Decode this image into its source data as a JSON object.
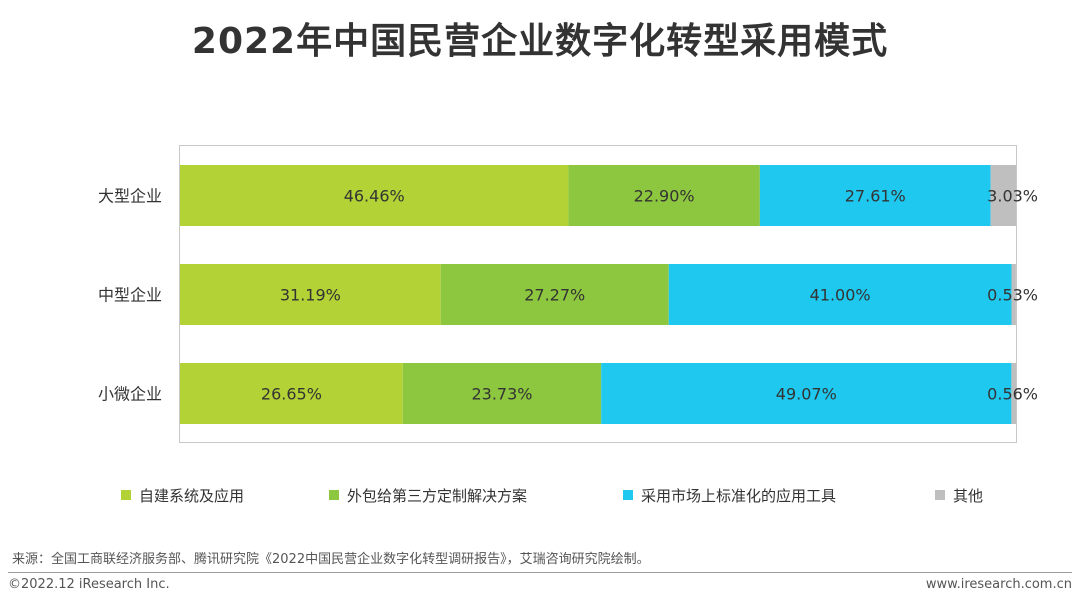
{
  "title": "2022年中国民营企业数字化转型采用模式",
  "chart_data": {
    "type": "bar",
    "orientation": "horizontal",
    "stacked": true,
    "percent_stacked": true,
    "categories": [
      "大型企业",
      "中型企业",
      "小微企业"
    ],
    "series": [
      {
        "name": "自建系统及应用",
        "color": "#b2d235",
        "values": [
          46.46,
          31.19,
          26.65
        ],
        "labels": [
          "46.46%",
          "31.19%",
          "26.65%"
        ]
      },
      {
        "name": "外包给第三方定制解决方案",
        "color": "#8dc63f",
        "values": [
          22.9,
          27.27,
          23.73
        ],
        "labels": [
          "22.90%",
          "27.27%",
          "23.73%"
        ]
      },
      {
        "name": "采用市场上标准化的应用工具",
        "color": "#1ec8ef",
        "values": [
          27.61,
          41.0,
          49.07
        ],
        "labels": [
          "27.61%",
          "41.00%",
          "49.07%"
        ]
      },
      {
        "name": "其他",
        "color": "#bfbfbf",
        "values": [
          3.03,
          0.53,
          0.56
        ],
        "labels": [
          "3.03%",
          "0.53%",
          "0.56%"
        ]
      }
    ],
    "xlim": [
      0,
      100
    ],
    "grid": false,
    "legend_position": "bottom"
  },
  "source": "来源：全国工商联经济服务部、腾讯研究院《2022中国民营企业数字化转型调研报告》，艾瑞咨询研究院绘制。",
  "footer": {
    "copyright": "©2022.12 iResearch Inc.",
    "website": "www.iresearch.com.cn"
  }
}
